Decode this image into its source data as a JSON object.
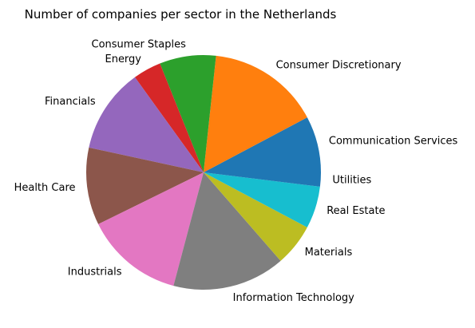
{
  "chart_data": {
    "type": "pie",
    "title": "Number of companies per sector in the Netherlands",
    "start_angle_deg": 0,
    "direction": "counterclockwise",
    "slices": [
      {
        "label": "Communication Services",
        "value": 8,
        "color": "#1f77b4"
      },
      {
        "label": "Consumer Discretionary",
        "value": 16,
        "color": "#ff7f0e"
      },
      {
        "label": "Consumer Staples",
        "value": 8,
        "color": "#2ca02c"
      },
      {
        "label": "Energy",
        "value": 4,
        "color": "#d62728"
      },
      {
        "label": "Financials",
        "value": 12,
        "color": "#9467bd"
      },
      {
        "label": "Health Care",
        "value": 11,
        "color": "#8c564b"
      },
      {
        "label": "Industrials",
        "value": 14,
        "color": "#e377c2"
      },
      {
        "label": "Information Technology",
        "value": 16,
        "color": "#7f7f7f"
      },
      {
        "label": "Materials",
        "value": 6,
        "color": "#bcbd22"
      },
      {
        "label": "Real Estate",
        "value": 6,
        "color": "#17becf"
      },
      {
        "label": "Utilities",
        "value": 2,
        "color": "#1f77b4"
      }
    ]
  }
}
